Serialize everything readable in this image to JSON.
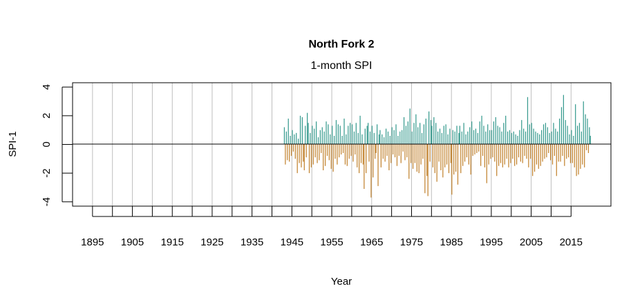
{
  "chart_data": {
    "type": "bar",
    "title": "North Fork 2",
    "subtitle": "1-month SPI",
    "xlabel": "Year",
    "ylabel": "SPI-1",
    "xlim": [
      1890,
      2025
    ],
    "ylim": [
      -4.3,
      4.3
    ],
    "y_ticks": [
      -4,
      -2,
      0,
      2,
      4
    ],
    "y_tick_labels": [
      "-4",
      "-2",
      "0",
      "2",
      "4"
    ],
    "x_ticks": [
      1895,
      1900,
      1905,
      1910,
      1915,
      1920,
      1925,
      1930,
      1935,
      1940,
      1945,
      1950,
      1955,
      1960,
      1965,
      1970,
      1975,
      1980,
      1985,
      1990,
      1995,
      2000,
      2005,
      2010,
      2015
    ],
    "x_tick_labels": [
      "1895",
      "1905",
      "1915",
      "1925",
      "1935",
      "1945",
      "1955",
      "1965",
      "1975",
      "1985",
      "1995",
      "2005",
      "2015"
    ],
    "vertical_grid": true,
    "reference_line": 0,
    "colors": {
      "positive": "#389b8f",
      "negative": "#c2832f",
      "grid": "#bebebe"
    },
    "values_per_year": 4,
    "series": [
      {
        "year": 1943,
        "values": [
          1.2,
          -1.4,
          0.9,
          -1.1
        ]
      },
      {
        "year": 1944,
        "values": [
          1.8,
          -1.2,
          0.6,
          -0.8
        ]
      },
      {
        "year": 1945,
        "values": [
          1.0,
          -0.5,
          0.7,
          -1.0
        ]
      },
      {
        "year": 1946,
        "values": [
          0.8,
          -2.0,
          0.4,
          -1.3
        ]
      },
      {
        "year": 1947,
        "values": [
          2.0,
          -1.6,
          1.9,
          -1.2
        ]
      },
      {
        "year": 1948,
        "values": [
          -1.8,
          1.3,
          -0.9,
          2.2
        ]
      },
      {
        "year": 1949,
        "values": [
          1.5,
          -2.0,
          0.8,
          -1.6
        ]
      },
      {
        "year": 1950,
        "values": [
          1.3,
          -1.4,
          1.1,
          -0.9
        ]
      },
      {
        "year": 1951,
        "values": [
          1.6,
          -1.3,
          0.5,
          -1.1
        ]
      },
      {
        "year": 1952,
        "values": [
          1.0,
          -0.6,
          1.2,
          -1.8
        ]
      },
      {
        "year": 1953,
        "values": [
          0.9,
          -1.5,
          1.6,
          -0.8
        ]
      },
      {
        "year": 1954,
        "values": [
          1.4,
          -1.1,
          0.7,
          -1.7
        ]
      },
      {
        "year": 1955,
        "values": [
          1.3,
          -1.9,
          0.6,
          -1.0
        ]
      },
      {
        "year": 1956,
        "values": [
          1.7,
          -1.4,
          1.4,
          -0.9
        ]
      },
      {
        "year": 1957,
        "values": [
          1.3,
          -0.7,
          0.6,
          -0.6
        ]
      },
      {
        "year": 1958,
        "values": [
          1.8,
          -1.4,
          0.7,
          -1.5
        ]
      },
      {
        "year": 1959,
        "values": [
          1.3,
          -1.0,
          1.5,
          -0.8
        ]
      },
      {
        "year": 1960,
        "values": [
          1.4,
          -1.2,
          0.9,
          -0.7
        ]
      },
      {
        "year": 1961,
        "values": [
          1.5,
          -1.6,
          0.8,
          -2.0
        ]
      },
      {
        "year": 1962,
        "values": [
          2.0,
          -1.3,
          0.7,
          -1.4
        ]
      },
      {
        "year": 1963,
        "values": [
          -3.1,
          1.1,
          -2.0,
          1.3
        ]
      },
      {
        "year": 1964,
        "values": [
          1.5,
          -1.2,
          0.9,
          -3.7
        ]
      },
      {
        "year": 1965,
        "values": [
          1.3,
          -2.3,
          0.8,
          -1.0
        ]
      },
      {
        "year": 1966,
        "values": [
          -0.6,
          1.4,
          -2.9,
          0.7
        ]
      },
      {
        "year": 1967,
        "values": [
          1.0,
          -1.6,
          0.7,
          -1.0
        ]
      },
      {
        "year": 1968,
        "values": [
          0.5,
          -1.2,
          1.1,
          -0.8
        ]
      },
      {
        "year": 1969,
        "values": [
          0.9,
          -1.8,
          0.6,
          -1.3
        ]
      },
      {
        "year": 1970,
        "values": [
          1.2,
          -0.7,
          1.0,
          -0.9
        ]
      },
      {
        "year": 1971,
        "values": [
          1.4,
          -1.5,
          0.6,
          -0.8
        ]
      },
      {
        "year": 1972,
        "values": [
          0.9,
          -1.3,
          1.0,
          -0.5
        ]
      },
      {
        "year": 1973,
        "values": [
          1.9,
          -1.1,
          1.3,
          -0.9
        ]
      },
      {
        "year": 1974,
        "values": [
          1.6,
          -2.4,
          2.5,
          -1.3
        ]
      },
      {
        "year": 1975,
        "values": [
          0.9,
          -1.7,
          1.5,
          -1.3
        ]
      },
      {
        "year": 1976,
        "values": [
          2.1,
          -1.9,
          1.2,
          -2.0
        ]
      },
      {
        "year": 1977,
        "values": [
          1.5,
          -1.4,
          0.8,
          -1.0
        ]
      },
      {
        "year": 1978,
        "values": [
          1.4,
          -3.4,
          1.8,
          -2.2
        ]
      },
      {
        "year": 1979,
        "values": [
          -3.6,
          2.3,
          -1.2,
          1.7
        ]
      },
      {
        "year": 1980,
        "values": [
          1.3,
          -1.6,
          1.9,
          -2.0
        ]
      },
      {
        "year": 1981,
        "values": [
          1.5,
          -2.6,
          0.9,
          -1.2
        ]
      },
      {
        "year": 1982,
        "values": [
          1.1,
          -1.8,
          0.8,
          -2.3
        ]
      },
      {
        "year": 1983,
        "values": [
          1.3,
          -1.6,
          1.4,
          -1.4
        ]
      },
      {
        "year": 1984,
        "values": [
          0.7,
          -2.0,
          1.1,
          -1.3
        ]
      },
      {
        "year": 1985,
        "values": [
          -3.5,
          1.0,
          -2.1,
          0.9
        ]
      },
      {
        "year": 1986,
        "values": [
          -1.9,
          1.3,
          -2.8,
          0.8
        ]
      },
      {
        "year": 1987,
        "values": [
          1.3,
          -2.0,
          0.9,
          -1.5
        ]
      },
      {
        "year": 1988,
        "values": [
          1.5,
          -1.2,
          0.7,
          -0.9
        ]
      },
      {
        "year": 1989,
        "values": [
          0.9,
          -1.4,
          1.2,
          -2.1
        ]
      },
      {
        "year": 1990,
        "values": [
          1.6,
          -0.8,
          1.0,
          -0.7
        ]
      },
      {
        "year": 1991,
        "values": [
          1.1,
          -0.6,
          0.8,
          -0.5
        ]
      },
      {
        "year": 1992,
        "values": [
          1.6,
          -1.5,
          2.0,
          -0.8
        ]
      },
      {
        "year": 1993,
        "values": [
          1.3,
          -1.6,
          0.9,
          -2.7
        ]
      },
      {
        "year": 1994,
        "values": [
          1.4,
          -1.4,
          1.0,
          -1.0
        ]
      },
      {
        "year": 1995,
        "values": [
          1.0,
          -0.9,
          1.6,
          -1.2
        ]
      },
      {
        "year": 1996,
        "values": [
          1.9,
          -2.2,
          1.3,
          -1.5
        ]
      },
      {
        "year": 1997,
        "values": [
          1.2,
          -1.3,
          0.9,
          -1.6
        ]
      },
      {
        "year": 1998,
        "values": [
          1.5,
          -1.4,
          2.0,
          -1.0
        ]
      },
      {
        "year": 1999,
        "values": [
          0.9,
          -1.6,
          1.0,
          -1.3
        ]
      },
      {
        "year": 2000,
        "values": [
          0.8,
          -1.0,
          0.9,
          -1.5
        ]
      },
      {
        "year": 2001,
        "values": [
          0.7,
          -1.4,
          0.6,
          -0.9
        ]
      },
      {
        "year": 2002,
        "values": [
          1.0,
          -1.2,
          1.7,
          -1.3
        ]
      },
      {
        "year": 2003,
        "values": [
          1.1,
          -0.8,
          0.9,
          -1.0
        ]
      },
      {
        "year": 2004,
        "values": [
          3.3,
          -1.6,
          1.4,
          -1.0
        ]
      },
      {
        "year": 2005,
        "values": [
          1.5,
          -2.2,
          1.1,
          -1.9
        ]
      },
      {
        "year": 2006,
        "values": [
          0.9,
          -1.4,
          0.8,
          -1.7
        ]
      },
      {
        "year": 2007,
        "values": [
          0.7,
          -1.5,
          1.0,
          -1.2
        ]
      },
      {
        "year": 2008,
        "values": [
          1.4,
          -1.0,
          1.5,
          -0.9
        ]
      },
      {
        "year": 2009,
        "values": [
          1.2,
          -0.6,
          0.8,
          -1.1
        ]
      },
      {
        "year": 2010,
        "values": [
          0.9,
          -1.4,
          1.5,
          -0.8
        ]
      },
      {
        "year": 2011,
        "values": [
          1.1,
          -2.2,
          0.9,
          -1.2
        ]
      },
      {
        "year": 2012,
        "values": [
          1.8,
          -1.2,
          2.6,
          -0.8
        ]
      },
      {
        "year": 2013,
        "values": [
          3.45,
          -1.5,
          1.7,
          -1.0
        ]
      },
      {
        "year": 2014,
        "values": [
          1.3,
          -0.9,
          0.7,
          -1.3
        ]
      },
      {
        "year": 2015,
        "values": [
          1.0,
          -1.3,
          0.6,
          -1.6
        ]
      },
      {
        "year": 2016,
        "values": [
          2.8,
          -2.2,
          1.3,
          -2.1
        ]
      },
      {
        "year": 2017,
        "values": [
          1.5,
          -1.7,
          0.9,
          -1.4
        ]
      },
      {
        "year": 2018,
        "values": [
          3.0,
          -1.6,
          2.1,
          -0.4
        ]
      },
      {
        "year": 2019,
        "values": [
          1.8,
          -0.6,
          1.2,
          0.6
        ]
      }
    ]
  }
}
